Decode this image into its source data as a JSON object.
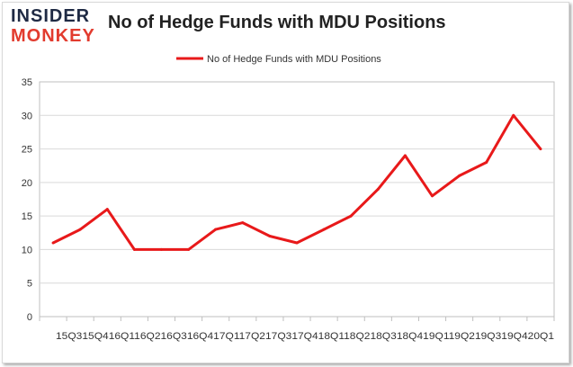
{
  "logo": {
    "top": "INSIDER",
    "bottom": "MONKEY"
  },
  "chart_data": {
    "type": "line",
    "title": "No of Hedge Funds with MDU Positions",
    "xlabel": "",
    "ylabel": "",
    "ylim": [
      0,
      35
    ],
    "yticks": [
      0,
      5,
      10,
      15,
      20,
      25,
      30,
      35
    ],
    "grid": true,
    "legend": "top-center",
    "x_tick_text": "15Q315Q416Q116Q216Q316Q417Q117Q217Q317Q418Q118Q218Q318Q419Q119Q219Q319Q420Q1",
    "categories": [
      "15Q3",
      "15Q4",
      "16Q1",
      "16Q2",
      "16Q3",
      "16Q4",
      "17Q1",
      "17Q2",
      "17Q3",
      "17Q4",
      "18Q1",
      "18Q2",
      "18Q3",
      "18Q4",
      "19Q1",
      "19Q2",
      "19Q3",
      "19Q4",
      "20Q1"
    ],
    "series": [
      {
        "name": "No of Hedge Funds with MDU Positions",
        "color": "#e8191a",
        "values": [
          11,
          13,
          16,
          10,
          10,
          10,
          13,
          14,
          12,
          11,
          13,
          15,
          19,
          24,
          18,
          21,
          23,
          30,
          25
        ]
      }
    ]
  }
}
